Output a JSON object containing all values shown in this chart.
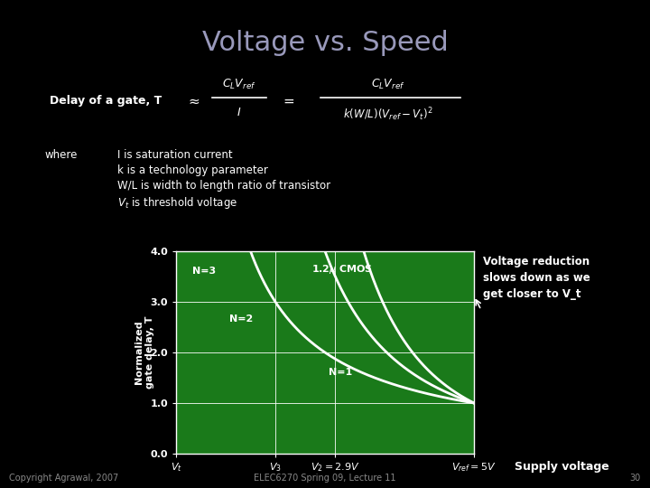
{
  "title": "Voltage vs. Speed",
  "bg_color": "#000000",
  "title_color": "#9999bb",
  "title_fontsize": 22,
  "formula_color": "#ffffff",
  "where_color": "#ffffff",
  "plot_bg": "#1a7a1a",
  "ylabel_text": "Normalized\ngate delay, T",
  "xlabel_text": "Supply voltage",
  "note_text": "Voltage reduction\nslows down as we\nget closer to V_t",
  "copyright_text": "Copyright Agrawal, 2007",
  "lecture_text": "ELEC6270 Spring 09, Lecture 11",
  "page_text": "30",
  "Vt": 0.5,
  "Vref": 5.0,
  "V3": 2.0,
  "V2": 2.9,
  "formula_fontsize": 9,
  "where_fontsize": 8.5
}
